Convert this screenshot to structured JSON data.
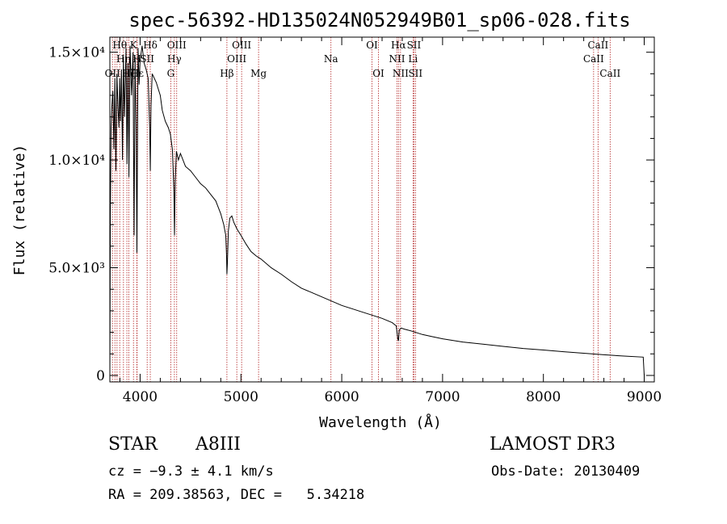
{
  "chart_data": {
    "type": "line",
    "title": "spec-56392-HD135024N052949B01_sp06-028.fits",
    "xlabel": "Wavelength (Å)",
    "ylabel": "Flux (relative)",
    "xlim": [
      3700,
      9100
    ],
    "ylim": [
      -300,
      15700
    ],
    "xticks": [
      {
        "value": 4000,
        "label": "4000"
      },
      {
        "value": 5000,
        "label": "5000"
      },
      {
        "value": 6000,
        "label": "6000"
      },
      {
        "value": 7000,
        "label": "7000"
      },
      {
        "value": 8000,
        "label": "8000"
      },
      {
        "value": 9000,
        "label": "9000"
      }
    ],
    "yticks": [
      {
        "value": 0,
        "label": "0"
      },
      {
        "value": 5000,
        "label": "5.0×10³"
      },
      {
        "value": 10000,
        "label": "1.0×10⁴"
      },
      {
        "value": 15000,
        "label": "1.5×10⁴"
      }
    ],
    "series": [
      {
        "name": "spectrum",
        "x": [
          3700,
          3705,
          3712,
          3720,
          3730,
          3740,
          3750,
          3760,
          3770,
          3780,
          3790,
          3798,
          3805,
          3815,
          3825,
          3835,
          3845,
          3860,
          3870,
          3880,
          3889,
          3900,
          3915,
          3930,
          3940,
          3950,
          3960,
          3968,
          3980,
          3990,
          4000,
          4020,
          4040,
          4060,
          4080,
          4095,
          4101,
          4108,
          4120,
          4140,
          4160,
          4180,
          4200,
          4220,
          4250,
          4280,
          4300,
          4320,
          4335,
          4341,
          4348,
          4360,
          4380,
          4400,
          4450,
          4500,
          4550,
          4600,
          4650,
          4700,
          4750,
          4800,
          4830,
          4850,
          4858,
          4861,
          4866,
          4875,
          4890,
          4910,
          4930,
          4960,
          5000,
          5050,
          5100,
          5150,
          5200,
          5300,
          5400,
          5500,
          5600,
          5700,
          5800,
          5900,
          6000,
          6100,
          6200,
          6300,
          6400,
          6500,
          6540,
          6556,
          6563,
          6570,
          6590,
          6620,
          6700,
          6800,
          6900,
          7000,
          7200,
          7400,
          7600,
          7800,
          8000,
          8200,
          8400,
          8600,
          8800,
          8990,
          9000
        ],
        "y": [
          0,
          7500,
          11500,
          12500,
          13200,
          10500,
          13800,
          9500,
          14000,
          12500,
          11500,
          13800,
          11800,
          14200,
          10000,
          14800,
          12000,
          15200,
          9800,
          14500,
          9200,
          15300,
          13000,
          15000,
          6500,
          14800,
          11500,
          5700,
          15200,
          13500,
          14600,
          15300,
          14500,
          14200,
          13800,
          11500,
          9500,
          12500,
          14000,
          13800,
          13600,
          13300,
          13000,
          12300,
          11800,
          11500,
          11200,
          10500,
          8500,
          6500,
          9000,
          10400,
          10000,
          10300,
          9700,
          9500,
          9200,
          8900,
          8700,
          8400,
          8100,
          7500,
          7000,
          6500,
          5500,
          4700,
          5200,
          6700,
          7300,
          7400,
          7100,
          6800,
          6500,
          6100,
          5750,
          5550,
          5400,
          5000,
          4700,
          4350,
          4050,
          3850,
          3650,
          3450,
          3250,
          3100,
          2950,
          2800,
          2650,
          2450,
          2300,
          1700,
          1600,
          2100,
          2200,
          2150,
          2050,
          1900,
          1800,
          1700,
          1550,
          1450,
          1350,
          1250,
          1180,
          1100,
          1030,
          960,
          900,
          850,
          0
        ]
      }
    ],
    "lines": [
      {
        "wl": 3726,
        "label": "OII",
        "row": 3
      },
      {
        "wl": 3750,
        "label": "",
        "row": 0
      },
      {
        "wl": 3771,
        "label": "",
        "row": 0
      },
      {
        "wl": 3798,
        "label": "Hθ",
        "row": 1
      },
      {
        "wl": 3835,
        "label": "Hη",
        "row": 2
      },
      {
        "wl": 3869,
        "label": "",
        "row": 0
      },
      {
        "wl": 3889,
        "label": "Hζ",
        "row": 3
      },
      {
        "wl": 3934,
        "label": "K",
        "row": 1
      },
      {
        "wl": 3968,
        "label": "H",
        "row": 2
      },
      {
        "wl": 3970,
        "label": "Hε",
        "row": 3
      },
      {
        "wl": 4070,
        "label": "SII",
        "row": 2
      },
      {
        "wl": 4101,
        "label": "Hδ",
        "row": 1
      },
      {
        "wl": 4304,
        "label": "G",
        "row": 3
      },
      {
        "wl": 4340,
        "label": "Hγ",
        "row": 2
      },
      {
        "wl": 4363,
        "label": "OIII",
        "row": 1
      },
      {
        "wl": 4861,
        "label": "Hβ",
        "row": 3
      },
      {
        "wl": 4959,
        "label": "OIII",
        "row": 2
      },
      {
        "wl": 5007,
        "label": "OIII",
        "row": 1
      },
      {
        "wl": 5175,
        "label": "Mg",
        "row": 3
      },
      {
        "wl": 5893,
        "label": "Na",
        "row": 2
      },
      {
        "wl": 6300,
        "label": "OI",
        "row": 1
      },
      {
        "wl": 6364,
        "label": "OI",
        "row": 3
      },
      {
        "wl": 6548,
        "label": "NII",
        "row": 2
      },
      {
        "wl": 6563,
        "label": "Hα",
        "row": 1
      },
      {
        "wl": 6583,
        "label": "NII",
        "row": 3
      },
      {
        "wl": 6707,
        "label": "Li",
        "row": 2
      },
      {
        "wl": 6716,
        "label": "SII",
        "row": 1
      },
      {
        "wl": 6731,
        "label": "SII",
        "row": 3
      },
      {
        "wl": 8498,
        "label": "CaII",
        "row": 2
      },
      {
        "wl": 8542,
        "label": "CaII",
        "row": 1
      },
      {
        "wl": 8662,
        "label": "CaII",
        "row": 3
      }
    ]
  },
  "info": {
    "object_type": "STAR",
    "subclass": "A8III",
    "survey": "LAMOST DR3",
    "cz": "cz = −9.3 ± 4.1 km/s",
    "obs_date": "Obs-Date: 20130409",
    "coords": "RA = 209.38563, DEC =   5.34218"
  },
  "colors": {
    "spectrum": "#000000",
    "lines": "#b22222",
    "axes": "#000000"
  }
}
